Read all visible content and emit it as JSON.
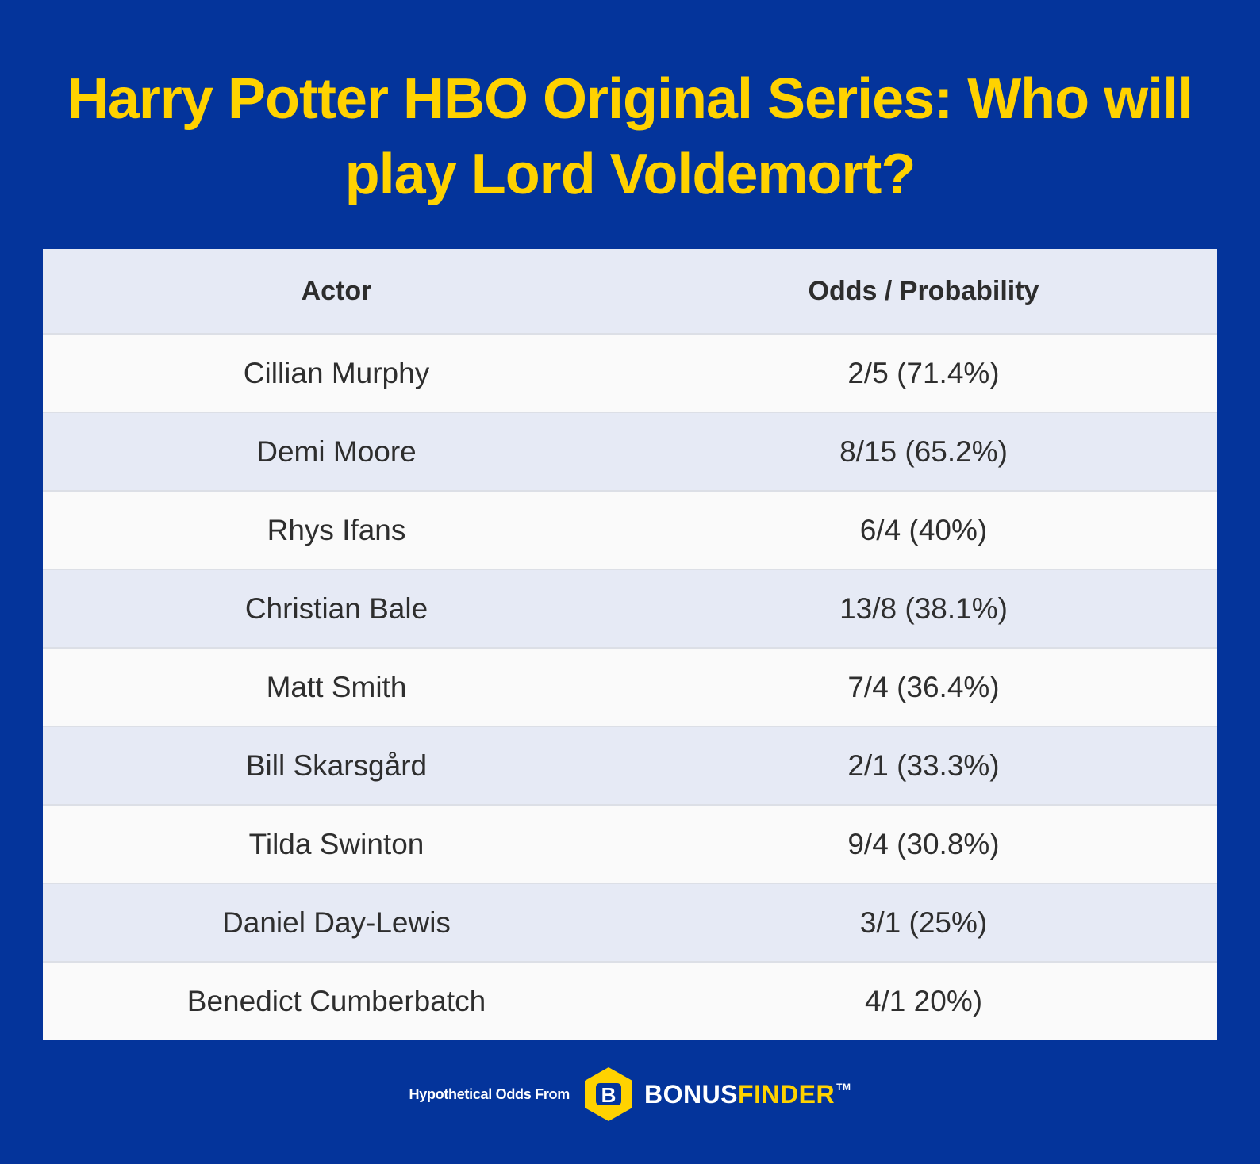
{
  "title": "Harry Potter HBO Original Series: Who will play Lord Voldemort?",
  "table": {
    "headers": {
      "actor": "Actor",
      "odds": "Odds / Probability"
    },
    "rows": [
      {
        "actor": "Cillian Murphy",
        "odds": "2/5 (71.4%)"
      },
      {
        "actor": "Demi Moore",
        "odds": "8/15 (65.2%)"
      },
      {
        "actor": "Rhys Ifans",
        "odds": "6/4 (40%)"
      },
      {
        "actor": "Christian Bale",
        "odds": "13/8 (38.1%)"
      },
      {
        "actor": "Matt Smith",
        "odds": "7/4 (36.4%)"
      },
      {
        "actor": "Bill Skarsgård",
        "odds": "2/1 (33.3%)"
      },
      {
        "actor": "Tilda Swinton",
        "odds": "9/4 (30.8%)"
      },
      {
        "actor": "Daniel Day-Lewis",
        "odds": "3/1 (25%)"
      },
      {
        "actor": "Benedict Cumberbatch",
        "odds": "4/1 20%)"
      }
    ]
  },
  "footer": {
    "text": "Hypothetical Odds From",
    "brand_part1": "BONUS",
    "brand_part2": "FINDER",
    "trademark": "TM",
    "logo_letter": "B"
  },
  "colors": {
    "background": "#04349b",
    "title": "#ffd200",
    "header_row": "#e6eaf5",
    "alt_row": "#e6eaf5",
    "row": "#fafafa",
    "brand_accent": "#ffd200"
  },
  "icons": {
    "logo": "bonusfinder-hexagon-logo-icon"
  }
}
